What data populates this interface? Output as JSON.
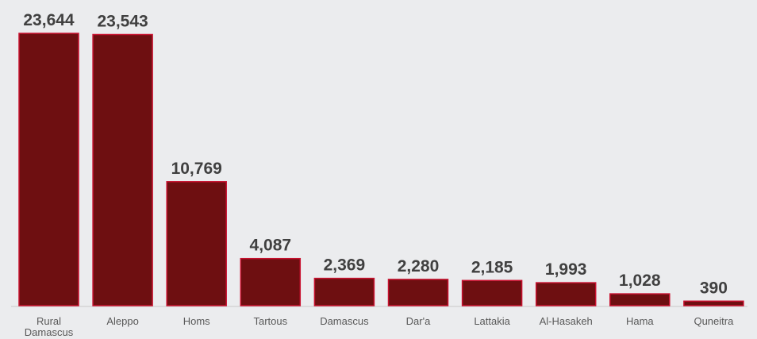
{
  "chart_data": {
    "type": "bar",
    "categories": [
      [
        "Rural",
        "Damascus"
      ],
      [
        "Aleppo"
      ],
      [
        "Homs"
      ],
      [
        "Tartous"
      ],
      [
        "Damascus"
      ],
      [
        "Dar'a"
      ],
      [
        "Lattakia"
      ],
      [
        "Al-Hasakeh"
      ],
      [
        "Hama"
      ],
      [
        "Quneitra"
      ]
    ],
    "values": [
      23644,
      23543,
      10769,
      4087,
      2369,
      2280,
      2185,
      1993,
      1028,
      390
    ],
    "value_labels": [
      "23,644",
      "23,543",
      "10,769",
      "4,087",
      "2,369",
      "2,280",
      "2,185",
      "1,993",
      "1,028",
      "390"
    ],
    "ylim": [
      0,
      23644
    ],
    "grid": false,
    "legend": "none",
    "colors": {
      "bar_fill": "#6e0f11",
      "bar_stroke": "#c8102e",
      "baseline": "#c8c8c8",
      "background": "#ebecee"
    }
  }
}
